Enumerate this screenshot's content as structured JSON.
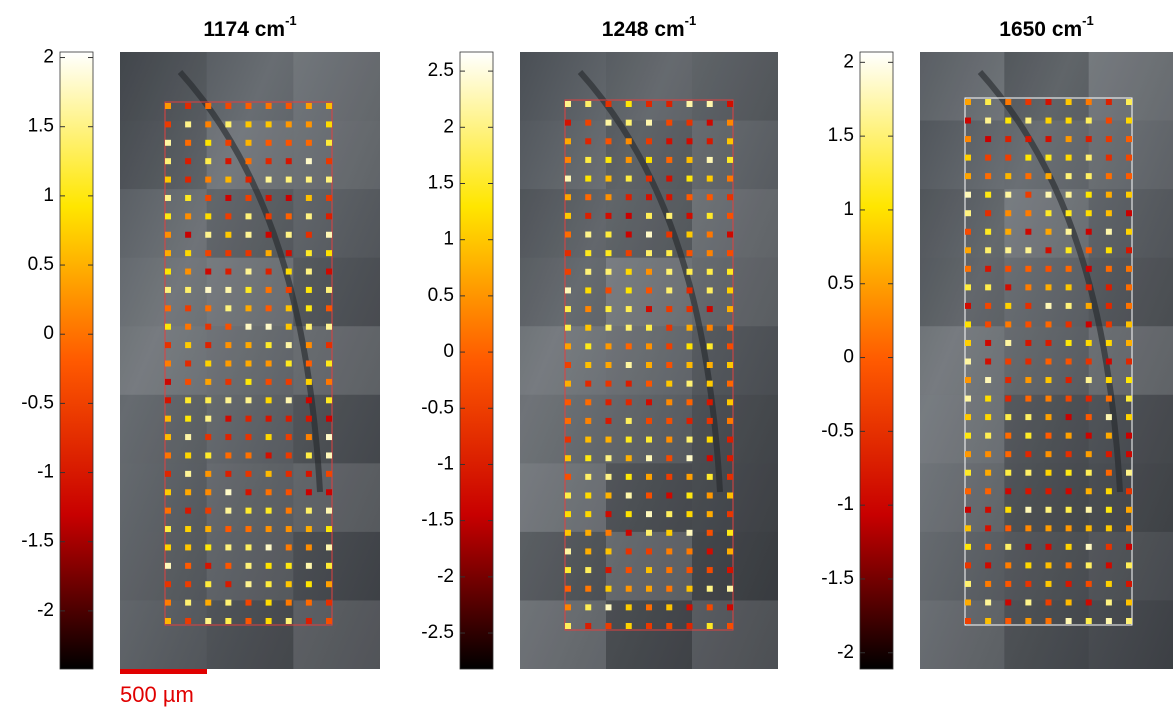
{
  "chart_data": [
    {
      "type": "heatmap",
      "title": "1174 cm",
      "title_sup": "-1",
      "clim": [
        -2.42,
        2.04
      ],
      "cticks": [
        -2,
        -1.5,
        -1,
        -0.5,
        0,
        0.5,
        1,
        1.5,
        2
      ],
      "colormap": [
        "#000000",
        "#c80000",
        "#ff5a00",
        "#ffe600",
        "#ffffff"
      ]
    },
    {
      "type": "heatmap",
      "title": "1248 cm",
      "title_sup": "-1",
      "clim": [
        -2.82,
        2.67
      ],
      "cticks": [
        -2.5,
        -2,
        -1.5,
        -1,
        -0.5,
        0,
        0.5,
        1,
        1.5,
        2,
        2.5
      ],
      "colormap": [
        "#000000",
        "#c80000",
        "#ff5a00",
        "#ffe600",
        "#ffffff"
      ]
    },
    {
      "type": "heatmap",
      "title": "1650 cm",
      "title_sup": "-1",
      "clim": [
        -2.11,
        2.07
      ],
      "cticks": [
        -2,
        -1.5,
        -1,
        -0.5,
        0,
        0.5,
        1,
        1.5,
        2
      ],
      "colormap": [
        "#000000",
        "#c80000",
        "#ff5a00",
        "#ffe600",
        "#ffffff"
      ]
    }
  ],
  "scale_bar": "500 µm"
}
